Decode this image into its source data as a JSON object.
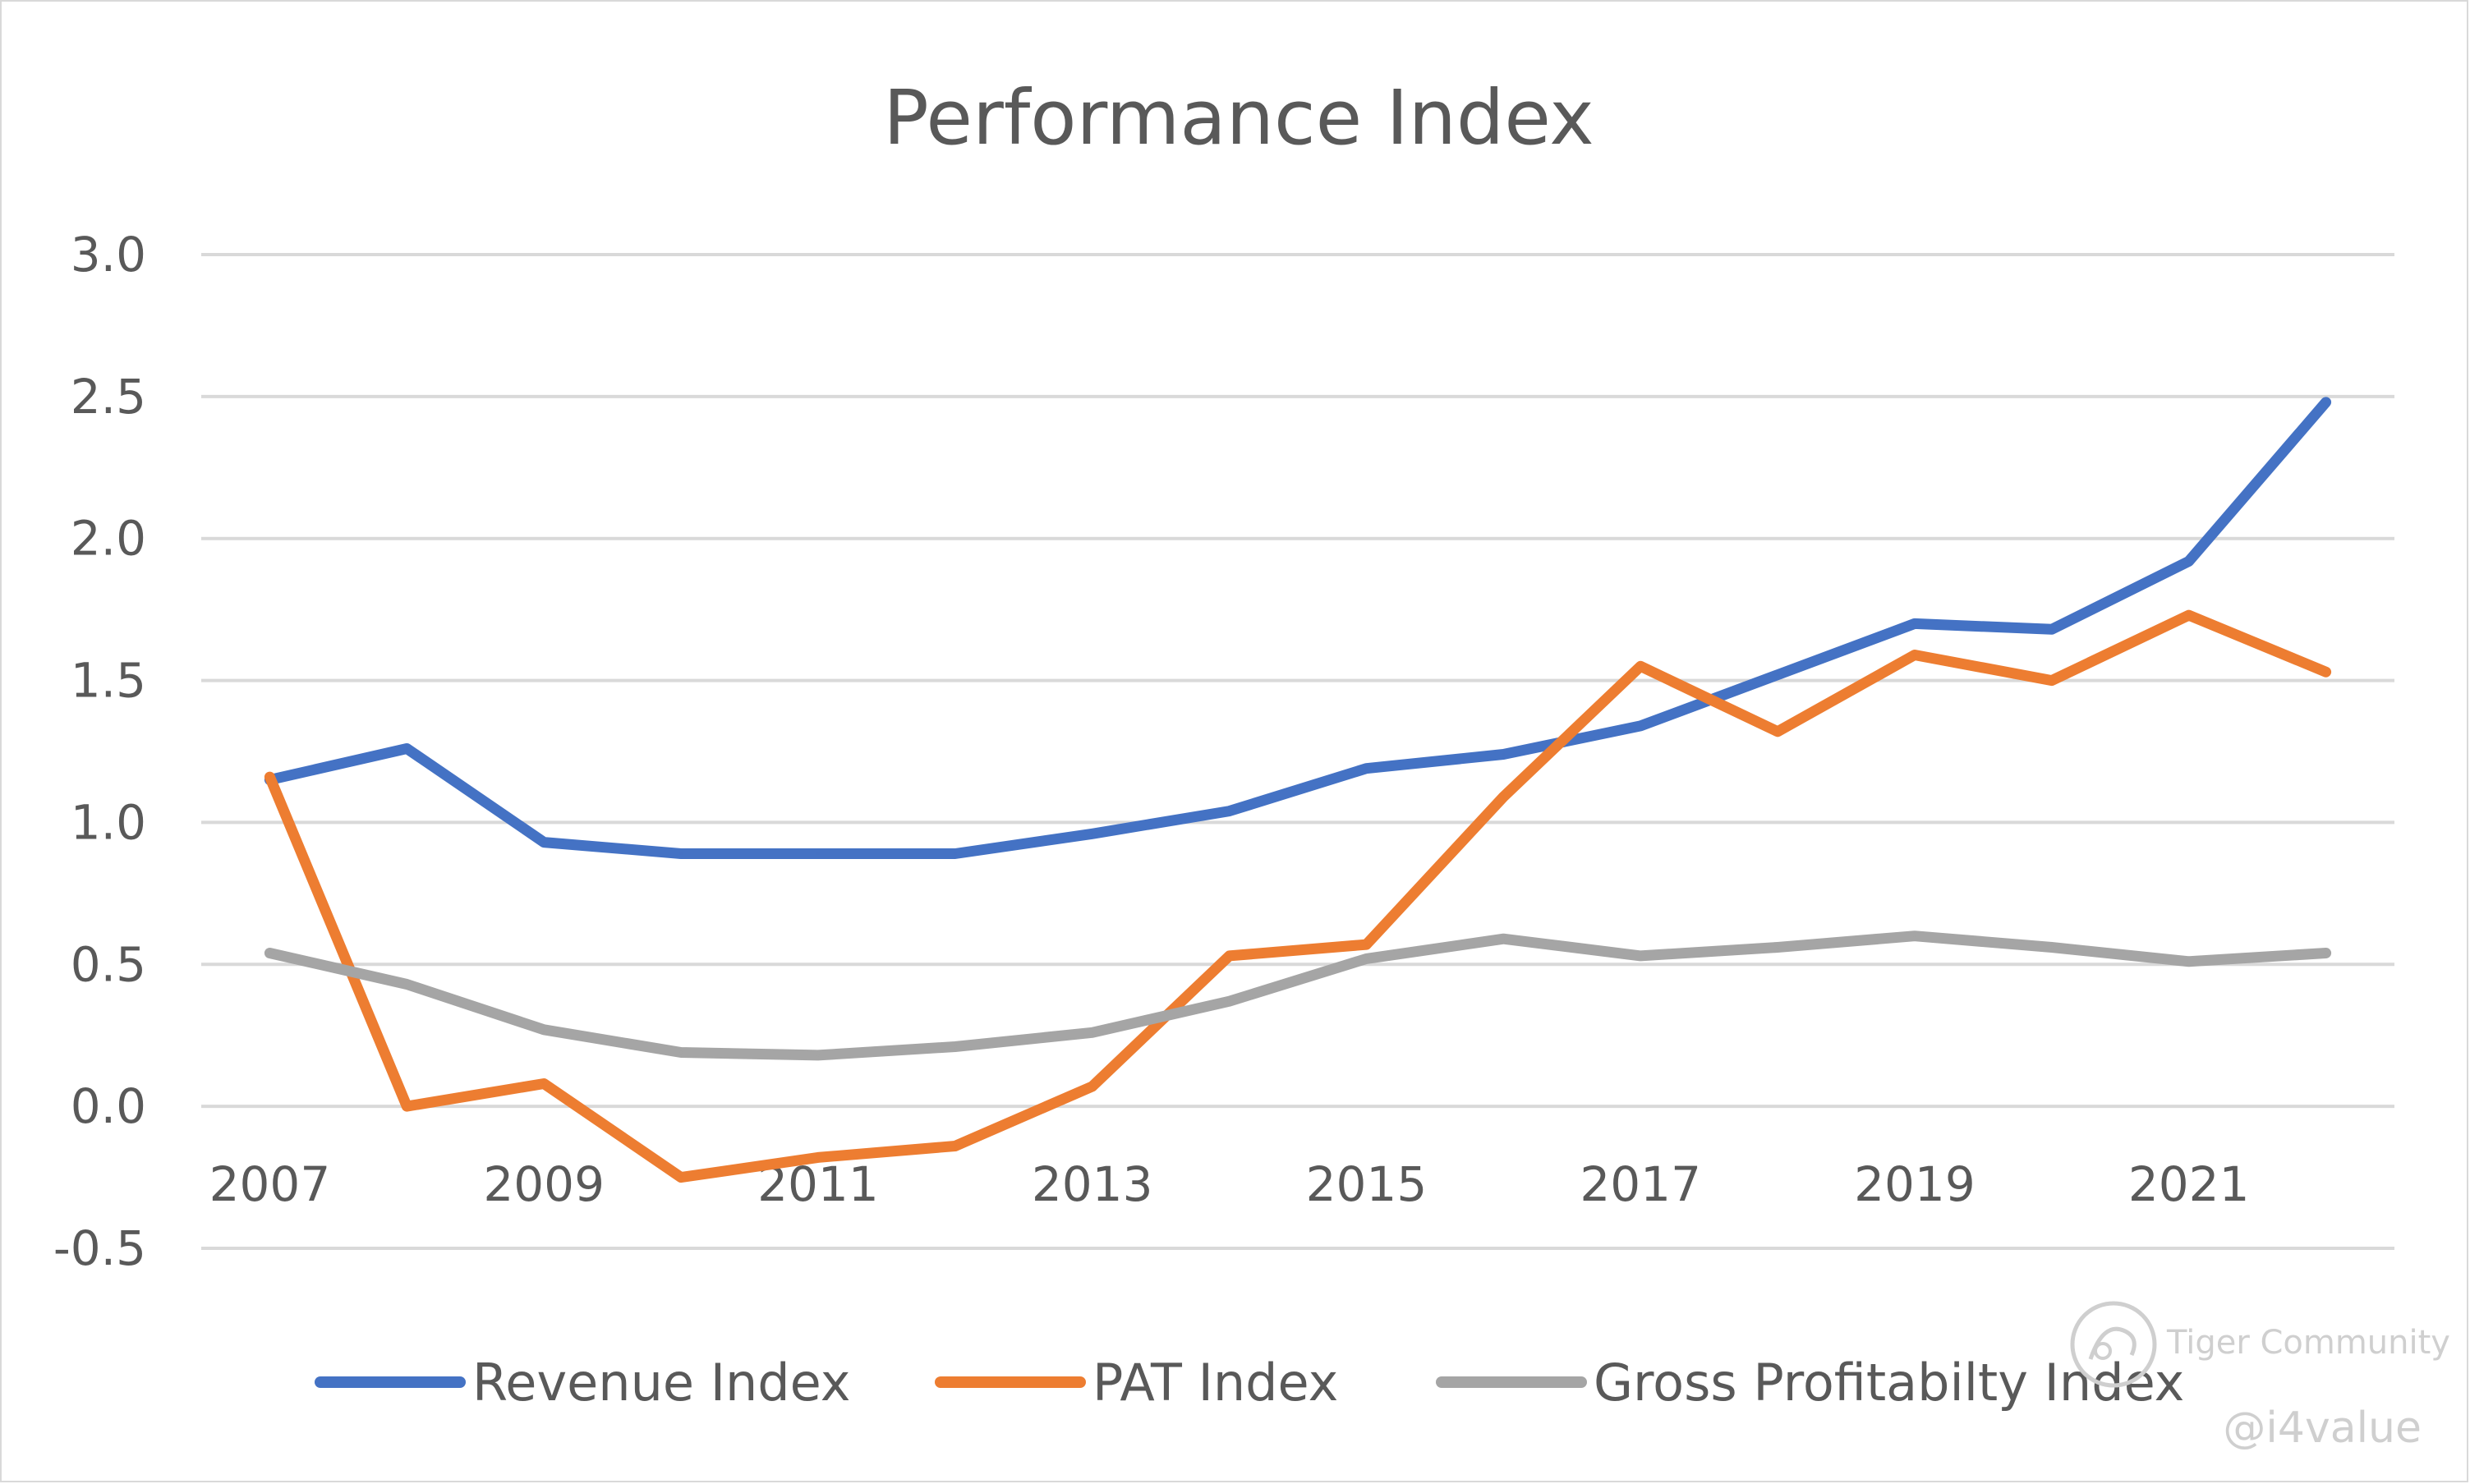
{
  "chart_data": {
    "type": "line",
    "title": "Performance Index",
    "xlabel": "",
    "ylabel": "",
    "x": [
      2007,
      2008,
      2009,
      2010,
      2011,
      2012,
      2013,
      2014,
      2015,
      2016,
      2017,
      2018,
      2019,
      2020,
      2021,
      2022
    ],
    "x_tick_labels": [
      "2007",
      "2009",
      "2011",
      "2013",
      "2015",
      "2017",
      "2019",
      "2021"
    ],
    "y_tick_labels": [
      "3.0",
      "2.5",
      "2.0",
      "1.5",
      "1.0",
      "0.5",
      "0.0",
      "-0.5"
    ],
    "ylim": [
      -0.5,
      3.0
    ],
    "grid": true,
    "legend_position": "bottom",
    "series": [
      {
        "name": "Revenue Index",
        "color": "#4472C4",
        "values": [
          1.15,
          1.26,
          0.93,
          0.89,
          0.89,
          0.89,
          0.96,
          1.04,
          1.19,
          1.24,
          1.34,
          1.52,
          1.7,
          1.68,
          1.92,
          2.48
        ]
      },
      {
        "name": "PAT Index",
        "color": "#ED7D31",
        "values": [
          1.16,
          0.0,
          0.08,
          -0.25,
          -0.18,
          -0.14,
          0.07,
          0.53,
          0.57,
          1.09,
          1.55,
          1.32,
          1.59,
          1.5,
          1.73,
          1.53
        ]
      },
      {
        "name": "Gross Profitabilty Index",
        "color": "#A5A5A5",
        "values": [
          0.54,
          0.43,
          0.27,
          0.19,
          0.18,
          0.21,
          0.26,
          0.37,
          0.52,
          0.59,
          0.53,
          0.56,
          0.6,
          0.56,
          0.51,
          0.54
        ]
      }
    ]
  },
  "watermark": {
    "brand": "Tiger Community",
    "handle": "@i4value"
  }
}
